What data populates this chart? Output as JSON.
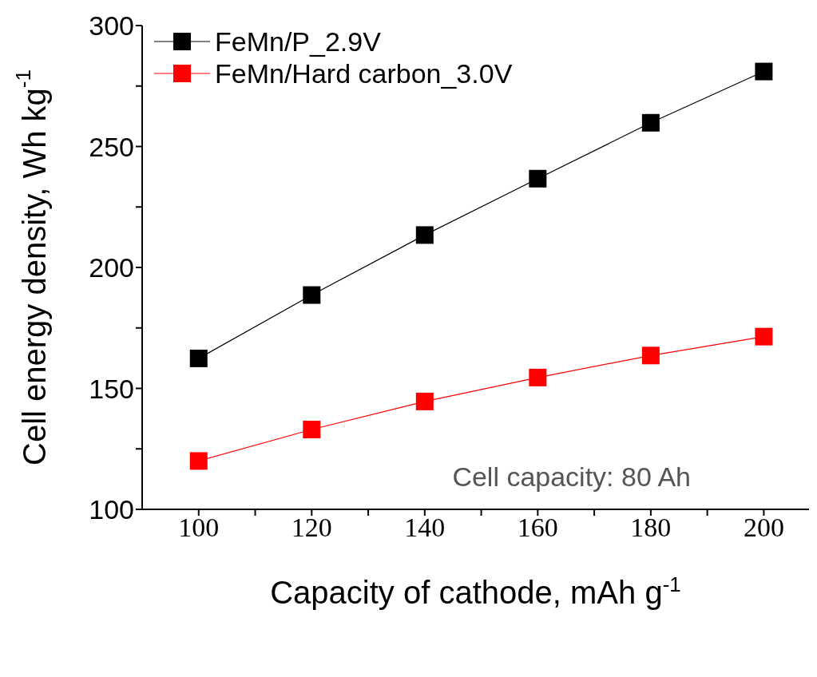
{
  "chart_data": {
    "type": "line",
    "xlabel": "Capacity of cathode, mAh g$^{-1}$",
    "ylabel": "Cell energy density, Wh kg$^{-1}$",
    "x": [
      100,
      120,
      140,
      160,
      180,
      200
    ],
    "series": [
      {
        "name": "FeMn/P_2.9V",
        "color": "#000000",
        "values": [
          162.4,
          188.6,
          213.4,
          236.7,
          259.8,
          281
        ]
      },
      {
        "name": "FeMn/Hard carbon_3.0V",
        "color": "#ff0000",
        "values": [
          120,
          133,
          144.6,
          154.5,
          163.6,
          171.4
        ]
      }
    ],
    "xlim": [
      90,
      208
    ],
    "xticks": [
      100,
      {
        "value": 110,
        "label": null
      },
      120,
      {
        "value": 130,
        "label": null
      },
      140,
      {
        "value": 150,
        "label": null
      },
      160,
      {
        "value": 170,
        "label": null
      },
      180,
      {
        "value": 190,
        "label": null
      },
      200
    ],
    "ylim": [
      100,
      300
    ],
    "yticks": [
      100,
      {
        "value": 125,
        "label": null
      },
      150,
      {
        "value": 175,
        "label": null
      },
      200,
      {
        "value": 225,
        "label": null
      },
      250,
      {
        "value": 275,
        "label": null
      },
      300
    ],
    "legend": "top left",
    "marker": "square",
    "line_style": "solid",
    "annotations": [
      "Cell capacity: 80 Ah"
    ]
  }
}
